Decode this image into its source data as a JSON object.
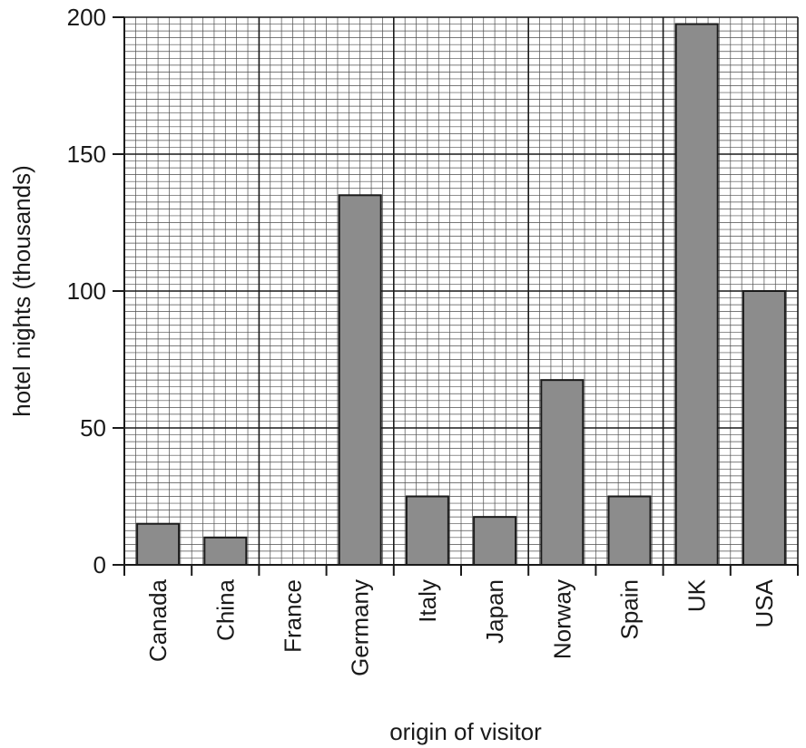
{
  "chart_data": {
    "type": "bar",
    "categories": [
      "Canada",
      "China",
      "France",
      "Germany",
      "Italy",
      "Japan",
      "Norway",
      "Spain",
      "UK",
      "USA"
    ],
    "values": [
      15,
      10,
      0,
      135,
      25,
      17.5,
      67.5,
      25,
      197.5,
      100
    ],
    "xlabel": "origin of visitor",
    "ylabel": "hotel nights (thousands)",
    "ylim": [
      0,
      200
    ],
    "yticks": [
      0,
      50,
      100,
      150,
      200
    ],
    "grid": true,
    "colors": {
      "bar_fill": "#8c8c8c",
      "bar_stroke": "#1a1a1a",
      "grid_minor": "#4d4d4d",
      "grid_major": "#1a1a1a"
    }
  }
}
